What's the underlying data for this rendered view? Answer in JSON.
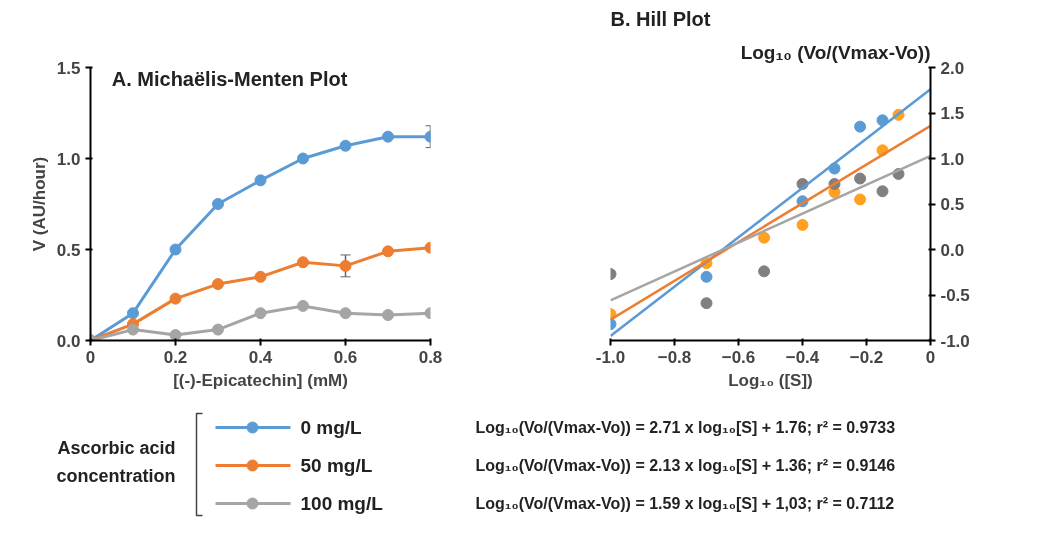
{
  "chart_data": [
    {
      "type": "line",
      "title": "A. Michaëlis-Menten Plot",
      "xlabel": "[(-)-Epicatechin] (mM)",
      "ylabel": "V (AU/hour)",
      "x": [
        0,
        0.1,
        0.2,
        0.3,
        0.4,
        0.5,
        0.6,
        0.7,
        0.8
      ],
      "series": [
        {
          "name": "0 mg/L",
          "color": "#5b9bd5",
          "values": [
            0,
            0.15,
            0.5,
            0.75,
            0.88,
            1.0,
            1.07,
            1.12,
            1.12
          ],
          "errors": [
            null,
            null,
            null,
            null,
            null,
            null,
            null,
            null,
            0.06
          ]
        },
        {
          "name": "50 mg/L",
          "color": "#ed7d31",
          "values": [
            0,
            0.09,
            0.23,
            0.31,
            0.35,
            0.43,
            0.41,
            0.49,
            0.51
          ],
          "errors": [
            null,
            null,
            null,
            null,
            null,
            null,
            0.06,
            null,
            null
          ]
        },
        {
          "name": "100 mg/L",
          "color": "#a5a5a5",
          "values": [
            0,
            0.06,
            0.03,
            0.06,
            0.15,
            0.19,
            0.15,
            0.14,
            0.15
          ]
        }
      ],
      "xlim": [
        0,
        0.8
      ],
      "ylim": [
        0,
        1.5
      ],
      "xticks": [
        0,
        {
          "value": 0.2,
          "label": "0.2"
        },
        {
          "value": 0.4,
          "label": "0.4"
        },
        {
          "value": 0.6,
          "label": "0.6"
        },
        {
          "value": 0.8,
          "label": "0.8"
        }
      ],
      "yticks": [
        {
          "value": 0,
          "label": "0.0"
        },
        {
          "value": 0.5,
          "label": "0.5"
        },
        {
          "value": 1,
          "label": "1.0"
        },
        {
          "value": 1.5,
          "label": "1.5"
        }
      ],
      "grid": false,
      "marker": "circle",
      "legend": "bottom",
      "legend_title": "Ascorbic acid concentration"
    },
    {
      "type": "scatter",
      "title": "B. Hill Plot",
      "xlabel": "Log₁₀ ([S])",
      "ylabel": "Log₁₀ (Vo/(Vmax-Vo))",
      "series": [
        {
          "marker": "circle",
          "color": "#5b9bd5",
          "x": [
            -1,
            -0.7,
            -0.4,
            -0.3,
            -0.22,
            -0.15
          ],
          "values": [
            -0.82,
            -0.3,
            0.53,
            0.89,
            1.35,
            1.42
          ]
        },
        {
          "marker": "circle",
          "color": "#ffa020",
          "x": [
            -1,
            -0.7,
            -0.52,
            -0.4,
            -0.3,
            -0.22,
            -0.15,
            -0.1
          ],
          "values": [
            -0.71,
            -0.15,
            0.13,
            0.27,
            0.63,
            0.55,
            1.09,
            1.48
          ]
        },
        {
          "marker": "circle",
          "color": "#808080",
          "x": [
            -1,
            -0.7,
            -0.52,
            -0.4,
            -0.3,
            -0.22,
            -0.15,
            -0.1
          ],
          "values": [
            -0.27,
            -0.59,
            -0.24,
            0.72,
            0.72,
            0.78,
            0.64,
            0.83
          ]
        },
        {
          "type": "line",
          "color": "#5b9bd5",
          "x": [
            -1,
            0
          ],
          "values": [
            -0.95,
            1.76
          ]
        },
        {
          "type": "line",
          "color": "#ed7d31",
          "x": [
            -1,
            0
          ],
          "values": [
            -0.77,
            1.36
          ]
        },
        {
          "type": "line",
          "color": "#a5a5a5",
          "x": [
            -1,
            0
          ],
          "values": [
            -0.56,
            1.03
          ]
        }
      ],
      "xlim": [
        -1,
        0
      ],
      "ylim": [
        -1,
        2
      ],
      "xticks": [
        {
          "value": -1,
          "label": "-1.0"
        },
        -0.8,
        -0.6,
        -0.4,
        -0.2,
        {
          "value": 0,
          "label": "0"
        }
      ],
      "yticks": [
        {
          "value": -1,
          "label": "-1.0"
        },
        {
          "value": -0.5,
          "label": "-0.5"
        },
        {
          "value": 0,
          "label": "0.0"
        },
        {
          "value": 0.5,
          "label": "0.5"
        },
        {
          "value": 1,
          "label": "1.0"
        },
        {
          "value": 1.5,
          "label": "1.5"
        },
        {
          "value": 2,
          "label": "2.0"
        }
      ],
      "grid": false,
      "annotations": [
        "Log₁₀(Vo/(Vmax-Vo)) = 2.71 x log₁₀[S] + 1.76; r² = 0.9733",
        "Log₁₀(Vo/(Vmax-Vo)) = 2.13 x log₁₀[S] + 1.36; r² = 0.9146",
        "Log₁₀(Vo/(Vmax-Vo)) = 1.59 x log₁₀[S] + 1,03; r² = 0.7112"
      ]
    }
  ]
}
